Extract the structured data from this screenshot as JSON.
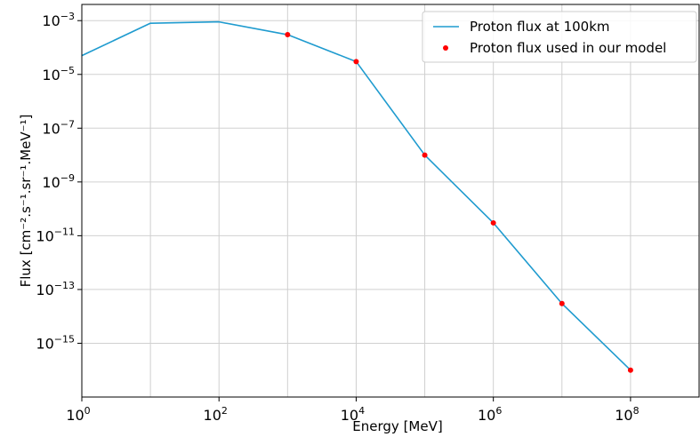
{
  "chart_data": {
    "type": "line",
    "title": "",
    "xlabel": "Energy [MeV]",
    "ylabel": "Flux [cm⁻².s⁻¹.sr⁻¹.MeV⁻¹]",
    "xscale": "log",
    "yscale": "log",
    "xlim": [
      1,
      1000000000.0
    ],
    "ylim": [
      1e-17,
      0.004
    ],
    "grid": true,
    "legend_position": "top-right",
    "x_ticks": [
      {
        "value": 1,
        "base": "10",
        "exp": "0"
      },
      {
        "value": 100,
        "base": "10",
        "exp": "2"
      },
      {
        "value": 10000,
        "base": "10",
        "exp": "4"
      },
      {
        "value": 1000000,
        "base": "10",
        "exp": "6"
      },
      {
        "value": 100000000,
        "base": "10",
        "exp": "8"
      }
    ],
    "y_ticks": [
      {
        "value": 0.001,
        "base": "10",
        "exp": "−3"
      },
      {
        "value": 1e-05,
        "base": "10",
        "exp": "−5"
      },
      {
        "value": 1e-07,
        "base": "10",
        "exp": "−7"
      },
      {
        "value": 1e-09,
        "base": "10",
        "exp": "−9"
      },
      {
        "value": 1e-11,
        "base": "10",
        "exp": "−11"
      },
      {
        "value": 1e-13,
        "base": "10",
        "exp": "−13"
      },
      {
        "value": 1e-15,
        "base": "10",
        "exp": "−15"
      }
    ],
    "x_gridlines": [
      1,
      10,
      100,
      1000,
      10000,
      100000,
      1000000,
      10000000,
      100000000
    ],
    "series": [
      {
        "name": "Proton flux at 100km",
        "kind": "line",
        "color": "#1f9bcf",
        "points": [
          [
            1,
            5e-05
          ],
          [
            10,
            0.0008
          ],
          [
            100,
            0.0009
          ],
          [
            1000,
            0.0003
          ],
          [
            10000,
            3e-05
          ],
          [
            100000,
            1e-08
          ],
          [
            1000000,
            3e-11
          ],
          [
            10000000,
            3e-14
          ],
          [
            100000000,
            1e-16
          ]
        ]
      },
      {
        "name": "Proton flux used in our model",
        "kind": "scatter",
        "color": "#ff0000",
        "points": [
          [
            1000,
            0.0003
          ],
          [
            10000,
            3e-05
          ],
          [
            100000,
            1e-08
          ],
          [
            1000000,
            3e-11
          ],
          [
            10000000,
            3e-14
          ],
          [
            100000000,
            1e-16
          ]
        ]
      }
    ]
  }
}
